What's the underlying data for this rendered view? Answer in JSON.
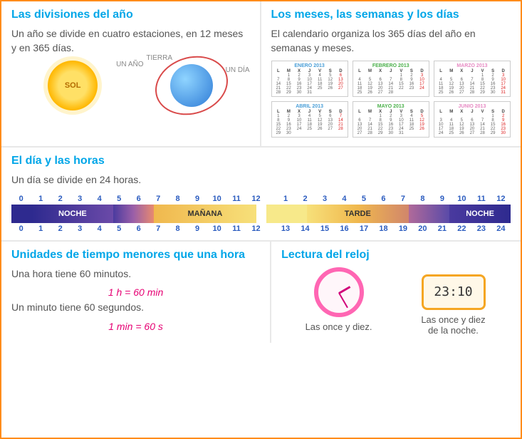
{
  "section1": {
    "title": "Las divisiones del año",
    "text": "Un año se divide en cuatro estaciones, en 12 meses y en 365 días.",
    "labels": {
      "sol": "SOL",
      "tierra": "TIERRA",
      "un_ano": "UN AÑO",
      "un_dia": "UN DÍA"
    }
  },
  "section2": {
    "title": "Los meses, las semanas y los días",
    "text": "El calendario organiza los 365 días del año en semanas y meses.",
    "year": "2013",
    "months": [
      "ENERO",
      "FEBRERO",
      "MARZO",
      "ABRIL",
      "MAYO",
      "JUNIO"
    ],
    "month_colors": [
      "#4a9fd8",
      "#4ab04a",
      "#e78ac3",
      "#4a9fd8",
      "#4ab04a",
      "#e78ac3"
    ],
    "dow": [
      "L",
      "M",
      "X",
      "J",
      "V",
      "S",
      "D"
    ]
  },
  "section3": {
    "title": "El día y las horas",
    "text": "Un día se divide en 24 horas.",
    "top12": [
      "0",
      "1",
      "2",
      "3",
      "4",
      "5",
      "6",
      "7",
      "8",
      "9",
      "10",
      "11",
      "12",
      "1",
      "2",
      "3",
      "4",
      "5",
      "6",
      "7",
      "8",
      "9",
      "10",
      "11",
      "12"
    ],
    "bot24": [
      "0",
      "1",
      "2",
      "3",
      "4",
      "5",
      "6",
      "7",
      "8",
      "9",
      "10",
      "11",
      "12",
      "13",
      "14",
      "15",
      "16",
      "17",
      "18",
      "19",
      "20",
      "21",
      "22",
      "23",
      "24"
    ],
    "periods": {
      "noche": "NOCHE",
      "manana": "MAÑANA",
      "tarde": "TARDE"
    },
    "colors": {
      "night": "#2e2a8f",
      "dawn": "linear-gradient(90deg,#4b3b9f,#9b5fa8,#e88a6f)",
      "morning": "linear-gradient(90deg,#f0b84e,#f7e07a)",
      "midday": "#f7e98a",
      "afternoon": "linear-gradient(90deg,#f7e07a,#f0b84e,#d1866b)",
      "dusk": "linear-gradient(90deg,#b06a9a,#5a4aa8)"
    }
  },
  "section4": {
    "title": "Unidades de tiempo menores que una hora",
    "line1": "Una hora tiene 60 minutos.",
    "eq1_left": "1 h = ",
    "eq1_right": "60 min",
    "line2": "Un minuto tiene 60 segundos.",
    "eq2_left": "1 min = ",
    "eq2_right": "60 s"
  },
  "section5": {
    "title": "Lectura del reloj",
    "digital": "23:10",
    "caption1": "Las once y diez.",
    "caption2a": "Las once y diez",
    "caption2b": "de la noche."
  }
}
